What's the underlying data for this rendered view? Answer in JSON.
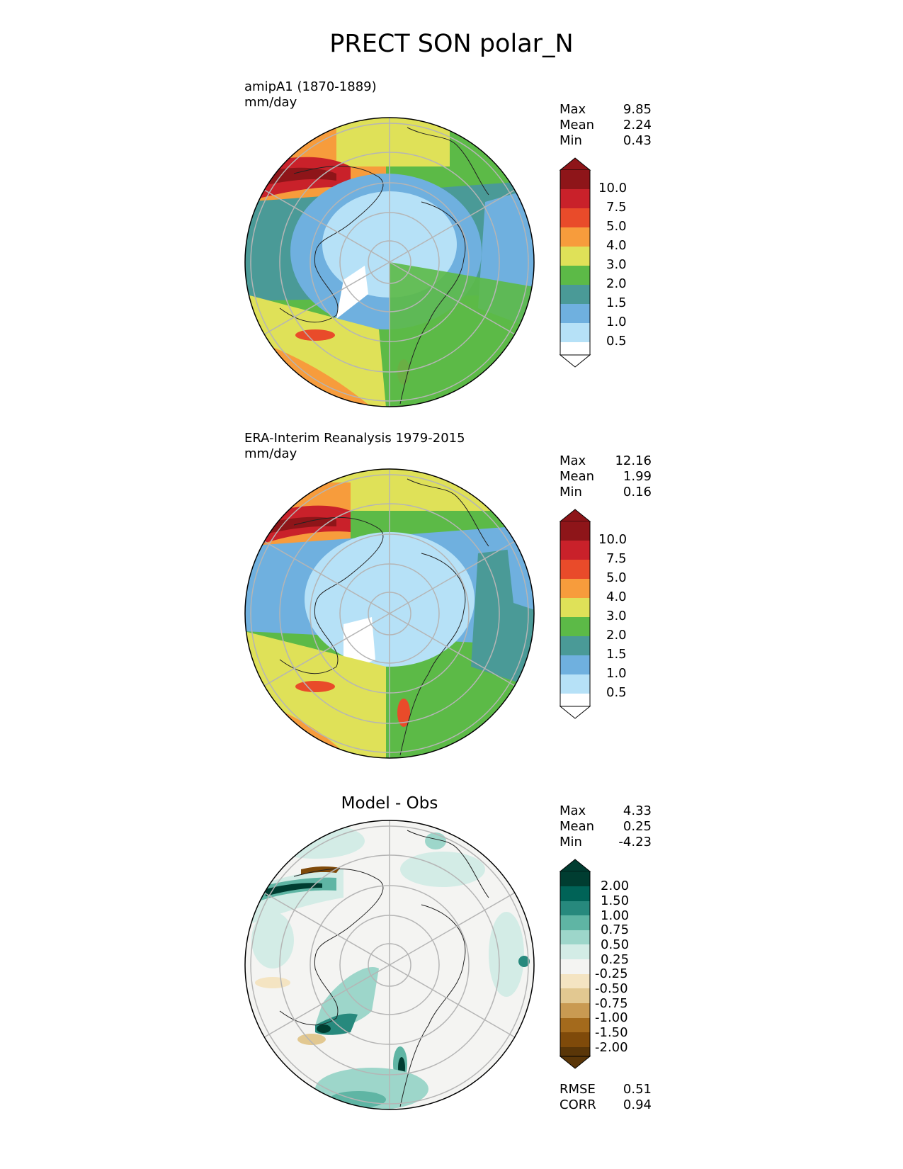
{
  "title": "PRECT SON polar_N",
  "panels": [
    {
      "id": "test",
      "subtitle_line1": "amipA1 (1870-1889)",
      "subtitle_line2": "mm/day",
      "stats": {
        "max_label": "Max",
        "max": "9.85",
        "mean_label": "Mean",
        "mean": "2.24",
        "min_label": "Min",
        "min": "0.43"
      },
      "colorbar_ticks": [
        "10.0",
        "7.5",
        "5.0",
        "4.0",
        "3.0",
        "2.0",
        "1.5",
        "1.0",
        "0.5"
      ]
    },
    {
      "id": "ref",
      "subtitle_line1": "ERA-Interim Reanalysis 1979-2015",
      "subtitle_line2": "mm/day",
      "stats": {
        "max_label": "Max",
        "max": "12.16",
        "mean_label": "Mean",
        "mean": "1.99",
        "min_label": "Min",
        "min": "0.16"
      },
      "colorbar_ticks": [
        "10.0",
        "7.5",
        "5.0",
        "4.0",
        "3.0",
        "2.0",
        "1.5",
        "1.0",
        "0.5"
      ]
    },
    {
      "id": "diff",
      "panel_title": "Model - Obs",
      "stats": {
        "max_label": "Max",
        "max": "4.33",
        "mean_label": "Mean",
        "mean": "0.25",
        "min_label": "Min",
        "min": "-4.23"
      },
      "colorbar_ticks": [
        "2.00",
        "1.50",
        "1.00",
        "0.75",
        "0.50",
        "0.25",
        "-0.25",
        "-0.50",
        "-0.75",
        "-1.00",
        "-1.50",
        "-2.00"
      ],
      "metrics": {
        "rmse_label": "RMSE",
        "rmse": "0.51",
        "corr_label": "CORR",
        "corr": "0.94"
      }
    }
  ],
  "colors": {
    "precip": [
      "#ffffff",
      "#b6e1f7",
      "#6fb0df",
      "#4a9a97",
      "#5cba47",
      "#dfe158",
      "#f79c3c",
      "#e94b2a",
      "#c9212a",
      "#8e1519"
    ],
    "diff": [
      "#5a3608",
      "#7f4a0a",
      "#a46a1c",
      "#c99a52",
      "#e2c891",
      "#f4e4c2",
      "#f4f4f2",
      "#d3ece6",
      "#9dd6ca",
      "#5fb5a4",
      "#27897d",
      "#006357",
      "#003d31"
    ]
  }
}
